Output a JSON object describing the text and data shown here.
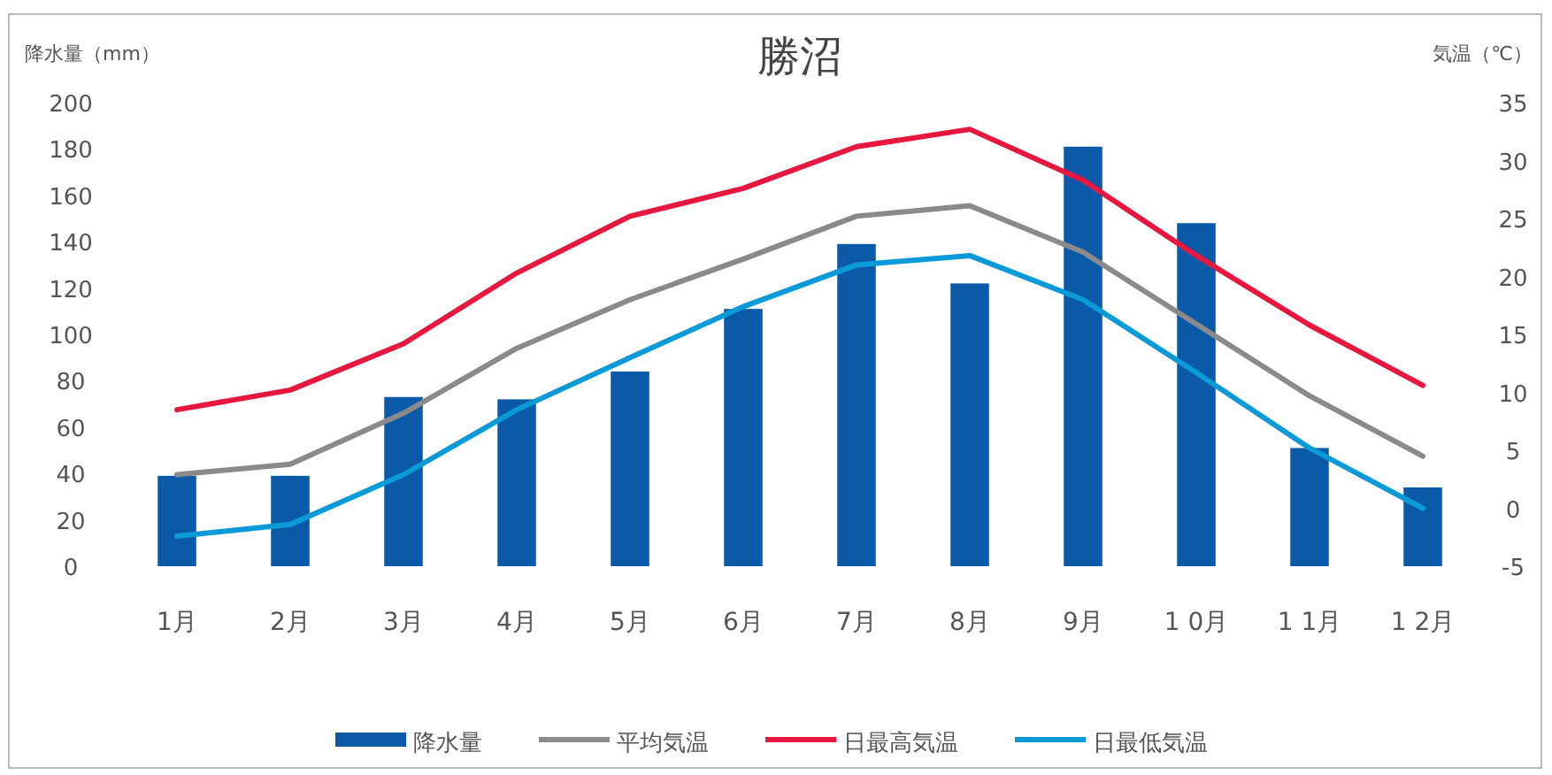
{
  "chart_data": {
    "type": "bar",
    "title": "勝沼",
    "ylabel": "降水量（mm）",
    "y2label": "気温（℃）",
    "categories": [
      "1月",
      "2月",
      "3月",
      "4月",
      "5月",
      "6月",
      "7月",
      "8月",
      "9月",
      "1 0月",
      "1 1月",
      "1 2月"
    ],
    "series": [
      {
        "name": "降水量",
        "color": "#0a5aa8",
        "values": [
          39,
          39,
          73,
          72,
          84,
          111,
          139,
          122,
          181,
          148,
          51,
          34
        ]
      },
      {
        "name": "平均気温",
        "type": "line",
        "axis": "y2",
        "color": "#8a8a8a",
        "values": [
          2.9,
          3.8,
          8.2,
          13.8,
          18,
          21.5,
          25.2,
          26.1,
          22.1,
          15.9,
          9.7,
          4.5
        ]
      },
      {
        "name": "日最高気温",
        "type": "line",
        "axis": "y2",
        "color": "#e8173f",
        "values": [
          8.5,
          10.2,
          14.2,
          20.3,
          25.2,
          27.6,
          31.2,
          32.7,
          28.3,
          21.8,
          15.8,
          10.6
        ]
      },
      {
        "name": "日最低気温",
        "type": "line",
        "axis": "y2",
        "color": "#0b9ad8",
        "values": [
          -2.4,
          -1.4,
          2.9,
          8.5,
          13,
          17.4,
          21,
          21.8,
          18,
          11.7,
          5.2,
          0
        ]
      }
    ],
    "ylim": [
      0,
      200
    ],
    "yticks": [
      0,
      20,
      40,
      60,
      80,
      100,
      120,
      140,
      160,
      180,
      200
    ],
    "y2lim": [
      -5,
      35
    ],
    "y2ticks": [
      -5,
      0,
      5,
      10,
      15,
      20,
      25,
      30,
      35
    ],
    "grid": false,
    "legend": "bottom",
    "marker": "none",
    "line_style": "solid"
  }
}
